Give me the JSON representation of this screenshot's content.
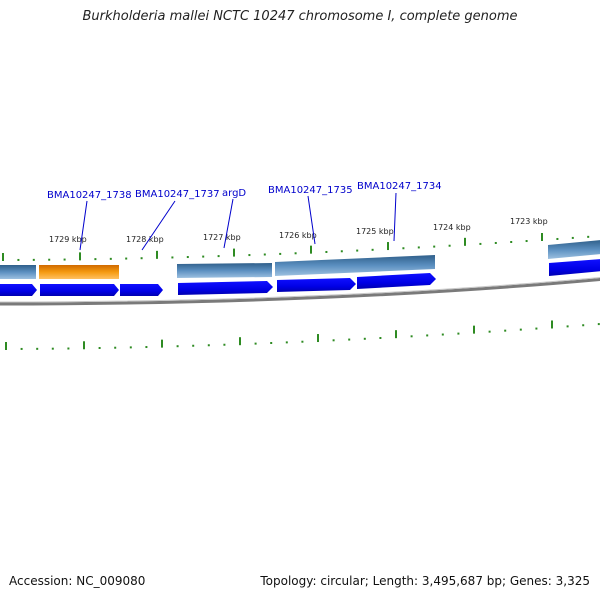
{
  "title": "Burkholderia mallei NCTC 10247 chromosome I, complete genome",
  "footer": {
    "accession": "Accession: NC_009080",
    "summary": "Topology: circular; Length: 3,495,687 bp; Genes: 3,325"
  },
  "colors": {
    "gene_blue": "#0000ee",
    "feature_steel": "#4a7faf",
    "feature_orange": "#f08a00",
    "tick_green": "#2e8b22",
    "backbone_gray": "#808080",
    "label_blue": "#0000cc"
  },
  "kbp_labels": [
    "1729 kbp",
    "1728 kbp",
    "1727 kbp",
    "1726 kbp",
    "1725 kbp",
    "1724 kbp",
    "1723 kbp"
  ],
  "gene_labels": [
    "BMA10247_1738",
    "BMA10247_1737",
    "argD",
    "BMA10247_1735",
    "BMA10247_1734"
  ]
}
